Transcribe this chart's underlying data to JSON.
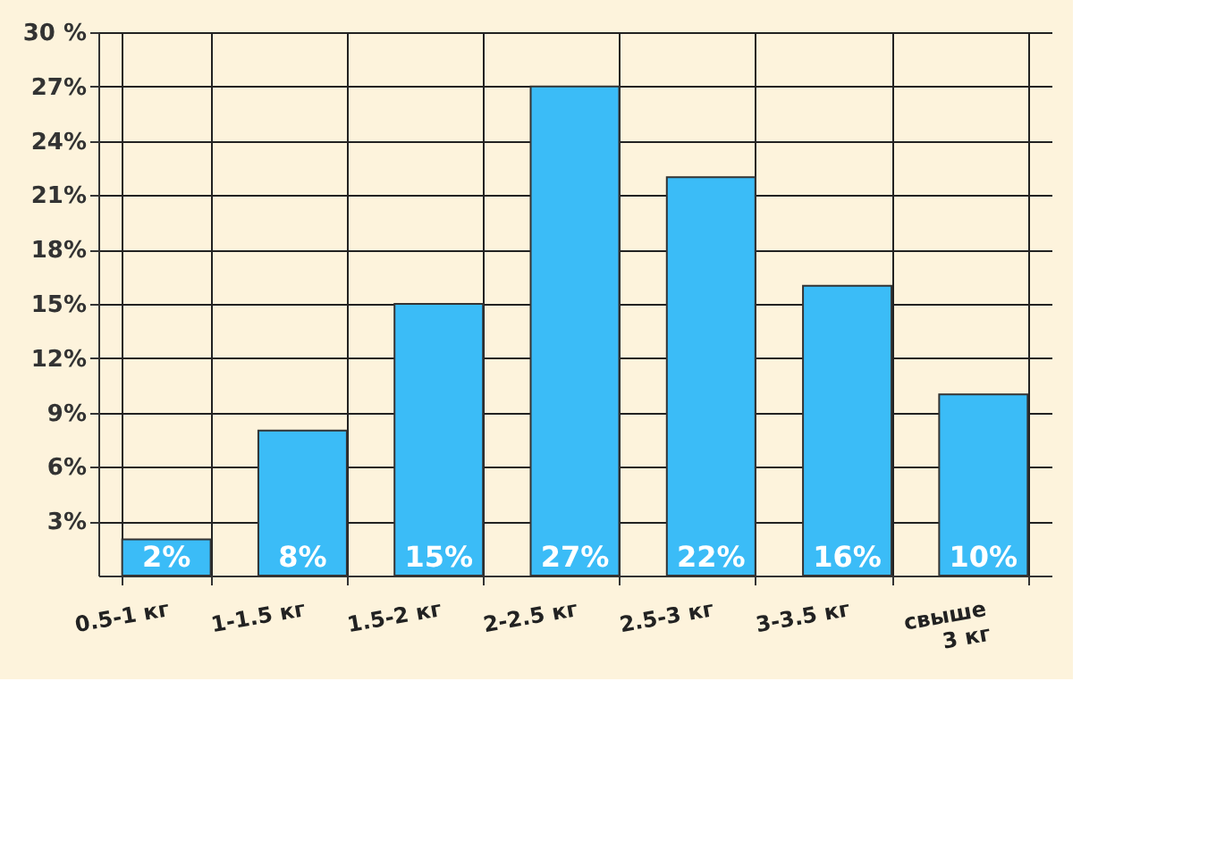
{
  "chart_data": {
    "type": "bar",
    "categories": [
      "0.5-1 кг",
      "1-1.5 кг",
      "1.5-2 кг",
      "2-2.5 кг",
      "2.5-3 кг",
      "3-3.5 кг",
      "свыше 3 кг"
    ],
    "values": [
      2,
      8,
      15,
      27,
      22,
      16,
      10
    ],
    "color": "#3bbcf7",
    "ylim": [
      0,
      30
    ],
    "yticks": [
      {
        "value": 3,
        "label": "3%"
      },
      {
        "value": 6,
        "label": "6%"
      },
      {
        "value": 9,
        "label": "9%"
      },
      {
        "value": 12,
        "label": "12%"
      },
      {
        "value": 15,
        "label": "15%"
      },
      {
        "value": 18,
        "label": "18%"
      },
      {
        "value": 21,
        "label": "21%"
      },
      {
        "value": 24,
        "label": "24%"
      },
      {
        "value": 27,
        "label": "27%"
      },
      {
        "value": 30,
        "label": "30 %"
      }
    ],
    "value_labels": [
      "2%",
      "8%",
      "15%",
      "27%",
      "22%",
      "16%",
      "10%"
    ],
    "grid": true
  }
}
